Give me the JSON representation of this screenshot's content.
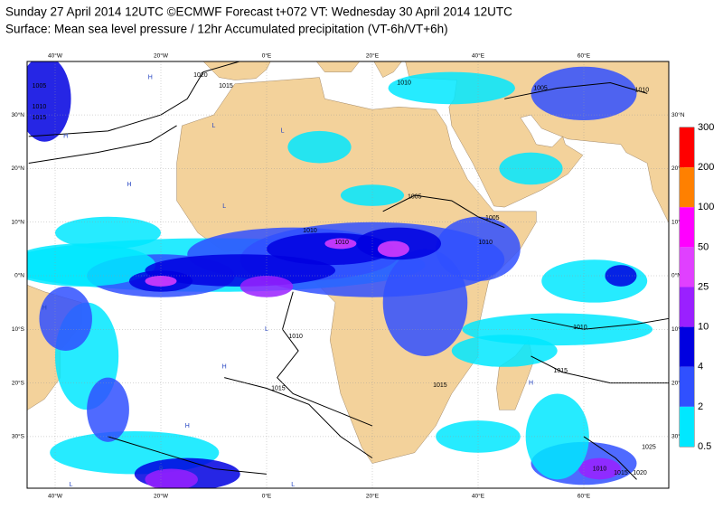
{
  "header": {
    "title": "Sunday 27 April 2014 12UTC ©ECMWF Forecast t+072 VT: Wednesday 30 April 2014 12UTC",
    "subtitle": "Surface: Mean sea level pressure / 12hr Accumulated precipitation (VT-6h/VT+6h)"
  },
  "map": {
    "longitude_labels": [
      "40°W",
      "20°W",
      "0°E",
      "20°E",
      "40°E",
      "60°E"
    ],
    "latitude_labels": [
      "30°N",
      "20°N",
      "10°N",
      "0°N",
      "10°S",
      "20°S",
      "30°S"
    ],
    "isobar_labels": [
      "1020",
      "1015",
      "1005",
      "1010",
      "1015",
      "1010",
      "1005",
      "1010",
      "1005",
      "1005",
      "1010",
      "1010",
      "1010",
      "1010",
      "1015",
      "1015",
      "1010",
      "1015",
      "1010",
      "1015",
      "1020",
      "1025"
    ],
    "pressure_centres": [
      "H",
      "H",
      "H",
      "L",
      "L",
      "L",
      "H",
      "L",
      "H",
      "H",
      "H",
      "L",
      "H",
      "L"
    ]
  },
  "colorbar": {
    "levels": [
      300,
      200,
      100,
      50,
      25,
      10,
      4,
      2,
      0.5
    ],
    "colors": [
      "#ff0000",
      "#ff8000",
      "#ff00ff",
      "#e040ff",
      "#9a20ff",
      "#0000e0",
      "#3050ff",
      "#00e8ff"
    ]
  }
}
